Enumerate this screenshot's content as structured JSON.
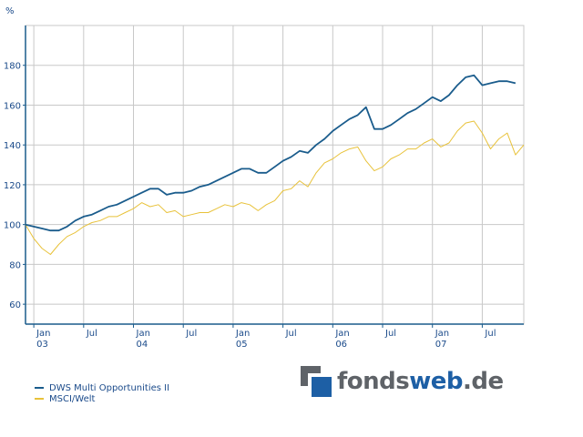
{
  "chart_data": {
    "type": "line",
    "unit_label": "%",
    "ylim": [
      50,
      200
    ],
    "y_ticks": [
      60,
      80,
      100,
      120,
      140,
      160,
      180
    ],
    "grid": true,
    "legend_position": "bottom-left",
    "x_tick_labels": [
      {
        "month": "Jan",
        "year": "03"
      },
      {
        "month": "Jul",
        "year": ""
      },
      {
        "month": "Jan",
        "year": "04"
      },
      {
        "month": "Jul",
        "year": ""
      },
      {
        "month": "Jan",
        "year": "05"
      },
      {
        "month": "Jul",
        "year": ""
      },
      {
        "month": "Jan",
        "year": "06"
      },
      {
        "month": "Jul",
        "year": ""
      },
      {
        "month": "Jan",
        "year": "07"
      },
      {
        "month": "Jul",
        "year": ""
      }
    ],
    "series": [
      {
        "name": "DWS Multi Opportunities II",
        "color": "#1a5c8c",
        "points": [
          [
            "2002-12",
            100
          ],
          [
            "2003-01",
            99
          ],
          [
            "2003-02",
            98
          ],
          [
            "2003-03",
            97
          ],
          [
            "2003-04",
            97
          ],
          [
            "2003-05",
            99
          ],
          [
            "2003-06",
            102
          ],
          [
            "2003-07",
            104
          ],
          [
            "2003-08",
            105
          ],
          [
            "2003-09",
            107
          ],
          [
            "2003-10",
            109
          ],
          [
            "2003-11",
            110
          ],
          [
            "2003-12",
            112
          ],
          [
            "2004-01",
            114
          ],
          [
            "2004-02",
            116
          ],
          [
            "2004-03",
            118
          ],
          [
            "2004-04",
            118
          ],
          [
            "2004-05",
            115
          ],
          [
            "2004-06",
            116
          ],
          [
            "2004-07",
            116
          ],
          [
            "2004-08",
            117
          ],
          [
            "2004-09",
            119
          ],
          [
            "2004-10",
            120
          ],
          [
            "2004-11",
            122
          ],
          [
            "2004-12",
            124
          ],
          [
            "2005-01",
            126
          ],
          [
            "2005-02",
            128
          ],
          [
            "2005-03",
            128
          ],
          [
            "2005-04",
            126
          ],
          [
            "2005-05",
            126
          ],
          [
            "2005-06",
            129
          ],
          [
            "2005-07",
            132
          ],
          [
            "2005-08",
            134
          ],
          [
            "2005-09",
            137
          ],
          [
            "2005-10",
            136
          ],
          [
            "2005-11",
            140
          ],
          [
            "2005-12",
            143
          ],
          [
            "2006-01",
            147
          ],
          [
            "2006-02",
            150
          ],
          [
            "2006-03",
            153
          ],
          [
            "2006-04",
            155
          ],
          [
            "2006-05",
            159
          ],
          [
            "2006-06",
            148
          ],
          [
            "2006-07",
            148
          ],
          [
            "2006-08",
            150
          ],
          [
            "2006-09",
            153
          ],
          [
            "2006-10",
            156
          ],
          [
            "2006-11",
            158
          ],
          [
            "2006-12",
            161
          ],
          [
            "2007-01",
            164
          ],
          [
            "2007-02",
            162
          ],
          [
            "2007-03",
            165
          ],
          [
            "2007-04",
            170
          ],
          [
            "2007-05",
            174
          ],
          [
            "2007-06",
            175
          ],
          [
            "2007-07",
            170
          ],
          [
            "2007-08",
            171
          ],
          [
            "2007-09",
            172
          ],
          [
            "2007-10",
            172
          ],
          [
            "2007-11",
            171
          ]
        ]
      },
      {
        "name": "MSCI/Welt",
        "color": "#e8c23a",
        "points": [
          [
            "2002-12",
            100
          ],
          [
            "2003-01",
            93
          ],
          [
            "2003-02",
            88
          ],
          [
            "2003-03",
            85
          ],
          [
            "2003-04",
            90
          ],
          [
            "2003-05",
            94
          ],
          [
            "2003-06",
            96
          ],
          [
            "2003-07",
            99
          ],
          [
            "2003-08",
            101
          ],
          [
            "2003-09",
            102
          ],
          [
            "2003-10",
            104
          ],
          [
            "2003-11",
            104
          ],
          [
            "2003-12",
            106
          ],
          [
            "2004-01",
            108
          ],
          [
            "2004-02",
            111
          ],
          [
            "2004-03",
            109
          ],
          [
            "2004-04",
            110
          ],
          [
            "2004-05",
            106
          ],
          [
            "2004-06",
            107
          ],
          [
            "2004-07",
            104
          ],
          [
            "2004-08",
            105
          ],
          [
            "2004-09",
            106
          ],
          [
            "2004-10",
            106
          ],
          [
            "2004-11",
            108
          ],
          [
            "2004-12",
            110
          ],
          [
            "2005-01",
            109
          ],
          [
            "2005-02",
            111
          ],
          [
            "2005-03",
            110
          ],
          [
            "2005-04",
            107
          ],
          [
            "2005-05",
            110
          ],
          [
            "2005-06",
            112
          ],
          [
            "2005-07",
            117
          ],
          [
            "2005-08",
            118
          ],
          [
            "2005-09",
            122
          ],
          [
            "2005-10",
            119
          ],
          [
            "2005-11",
            126
          ],
          [
            "2005-12",
            131
          ],
          [
            "2006-01",
            133
          ],
          [
            "2006-02",
            136
          ],
          [
            "2006-03",
            138
          ],
          [
            "2006-04",
            139
          ],
          [
            "2006-05",
            132
          ],
          [
            "2006-06",
            127
          ],
          [
            "2006-07",
            129
          ],
          [
            "2006-08",
            133
          ],
          [
            "2006-09",
            135
          ],
          [
            "2006-10",
            138
          ],
          [
            "2006-11",
            138
          ],
          [
            "2006-12",
            141
          ],
          [
            "2007-01",
            143
          ],
          [
            "2007-02",
            139
          ],
          [
            "2007-03",
            141
          ],
          [
            "2007-04",
            147
          ],
          [
            "2007-05",
            151
          ],
          [
            "2007-06",
            152
          ],
          [
            "2007-07",
            146
          ],
          [
            "2007-08",
            138
          ],
          [
            "2007-09",
            143
          ],
          [
            "2007-10",
            146
          ],
          [
            "2007-11",
            135
          ],
          [
            "2007-12",
            140
          ]
        ]
      }
    ]
  },
  "branding": {
    "logo_text_dark": "fonds",
    "logo_text_blue": "web",
    "logo_text_suffix": ".de"
  },
  "colors": {
    "axis": "#1a5c8c",
    "grid": "#c8c8c8",
    "tick_text": "#1a4a8a"
  }
}
